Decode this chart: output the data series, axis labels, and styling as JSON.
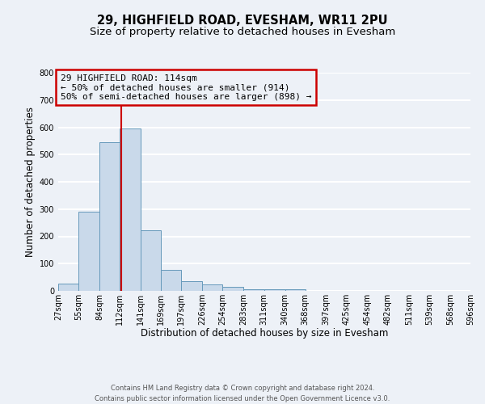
{
  "title": "29, HIGHFIELD ROAD, EVESHAM, WR11 2PU",
  "subtitle": "Size of property relative to detached houses in Evesham",
  "xlabel": "Distribution of detached houses by size in Evesham",
  "ylabel": "Number of detached properties",
  "bin_edges": [
    27,
    55,
    84,
    112,
    141,
    169,
    197,
    226,
    254,
    283,
    311,
    340,
    368,
    397,
    425,
    454,
    482,
    511,
    539,
    568,
    596
  ],
  "bin_heights": [
    28,
    290,
    545,
    595,
    223,
    78,
    37,
    25,
    15,
    7,
    5,
    7,
    0,
    0,
    0,
    0,
    0,
    0,
    0,
    0
  ],
  "bar_facecolor": "#c9d9ea",
  "bar_edgecolor": "#6699bb",
  "vline_x": 114,
  "vline_color": "#cc0000",
  "annotation_title": "29 HIGHFIELD ROAD: 114sqm",
  "annotation_line1": "← 50% of detached houses are smaller (914)",
  "annotation_line2": "50% of semi-detached houses are larger (898) →",
  "annotation_box_edgecolor": "#cc0000",
  "ylim": [
    0,
    800
  ],
  "yticks": [
    0,
    100,
    200,
    300,
    400,
    500,
    600,
    700,
    800
  ],
  "tick_labels": [
    "27sqm",
    "55sqm",
    "84sqm",
    "112sqm",
    "141sqm",
    "169sqm",
    "197sqm",
    "226sqm",
    "254sqm",
    "283sqm",
    "311sqm",
    "340sqm",
    "368sqm",
    "397sqm",
    "425sqm",
    "454sqm",
    "482sqm",
    "511sqm",
    "539sqm",
    "568sqm",
    "596sqm"
  ],
  "footer_line1": "Contains HM Land Registry data © Crown copyright and database right 2024.",
  "footer_line2": "Contains public sector information licensed under the Open Government Licence v3.0.",
  "bg_color": "#edf1f7",
  "grid_color": "#ffffff",
  "title_fontsize": 10.5,
  "subtitle_fontsize": 9.5,
  "axis_label_fontsize": 8.5,
  "tick_fontsize": 7,
  "annotation_fontsize": 8,
  "footer_fontsize": 6
}
